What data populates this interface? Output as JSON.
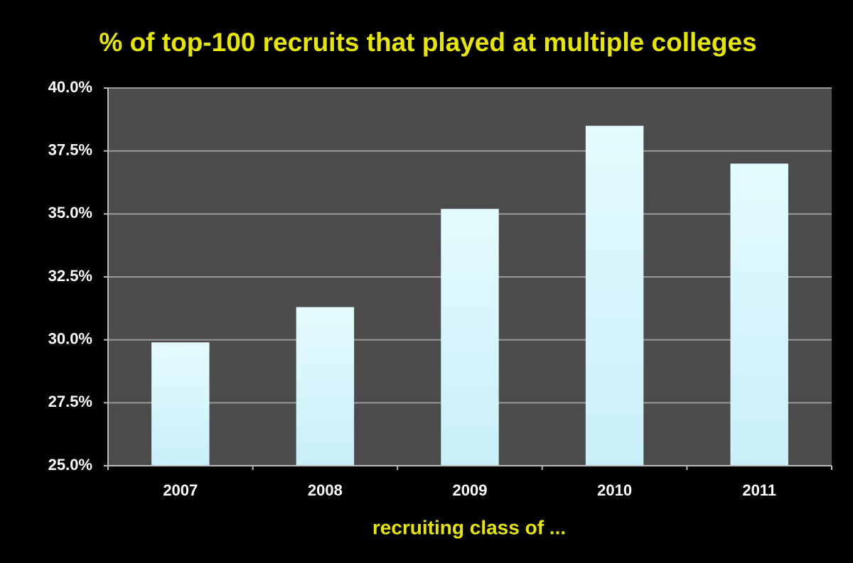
{
  "chart_data": {
    "type": "bar",
    "title": "% of top-100 recruits that played at multiple colleges",
    "x_label": "recruiting class of ...",
    "categories": [
      "2007",
      "2008",
      "2009",
      "2010",
      "2011"
    ],
    "values": [
      29.9,
      31.3,
      35.2,
      38.5,
      37.0
    ],
    "color": "#c9eff9",
    "ylim": [
      25,
      40
    ],
    "yticks": [
      {
        "value": 25,
        "label": "25.0%"
      },
      {
        "value": 27.5,
        "label": "27.5%"
      },
      {
        "value": 30,
        "label": "30.0%"
      },
      {
        "value": 32.5,
        "label": "32.5%"
      },
      {
        "value": 35,
        "label": "35.0%"
      },
      {
        "value": 37.5,
        "label": "37.5%"
      },
      {
        "value": 40,
        "label": "40.0%"
      }
    ],
    "grid": true
  }
}
